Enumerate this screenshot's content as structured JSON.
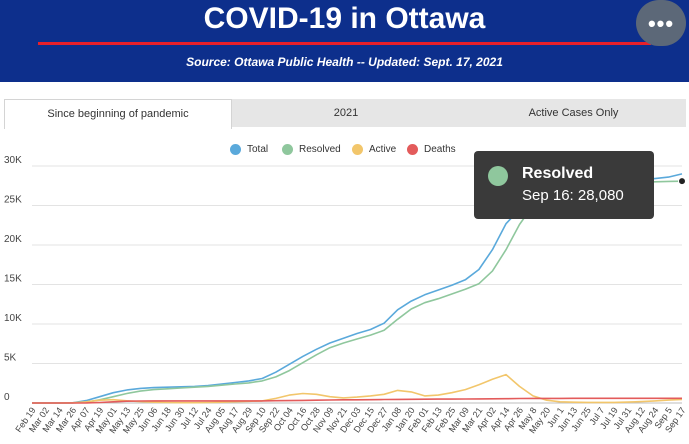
{
  "header": {
    "title": "COVID-19 in Ottawa",
    "source": "Source:  Ottawa Public Health -- Updated:  Sept. 17, 2021",
    "menu_icon": "more-horizontal-icon",
    "menu_glyph": "•••"
  },
  "tabs": [
    {
      "label": "Since beginning of pandemic",
      "active": true
    },
    {
      "label": "2021",
      "active": false
    },
    {
      "label": "Active Cases Only",
      "active": false
    }
  ],
  "colors": {
    "header_bg": "#0d2f8c",
    "accent_red": "#e8202a",
    "total": "#5aa9db",
    "resolved": "#8fc79d",
    "active": "#f2c66b",
    "deaths": "#e35b5b"
  },
  "tooltip": {
    "series": "Resolved",
    "value": "Sep 16: 28,080"
  },
  "chart_data": {
    "type": "line",
    "title": "",
    "xlabel": "",
    "ylabel": "",
    "ylim": [
      0,
      30000
    ],
    "grid": true,
    "legend_placement": "top-center",
    "y_ticks": [
      "0",
      "5K",
      "10K",
      "15K",
      "20K",
      "25K",
      "30K"
    ],
    "x_tick_labels": [
      "Feb 19",
      "Mar 02",
      "Mar 14",
      "Mar 26",
      "Apr 07",
      "Apr 19",
      "May 01",
      "May 13",
      "May 25",
      "Jun 06",
      "Jun 18",
      "Jun 30",
      "Jul 12",
      "Jul 24",
      "Aug 05",
      "Aug 17",
      "Aug 29",
      "Sep 10",
      "Sep 22",
      "Oct 04",
      "Oct 16",
      "Oct 28",
      "Nov 09",
      "Nov 21",
      "Dec 03",
      "Dec 15",
      "Dec 27",
      "Jan 08",
      "Jan 20",
      "Feb 01",
      "Feb 13",
      "Feb 25",
      "Mar 09",
      "Mar 21",
      "Apr 02",
      "Apr 14",
      "Apr 26",
      "May 8",
      "May 20",
      "Jun 1",
      "Jun 13",
      "Jun 25",
      "Jul 7",
      "Jul 19",
      "Jul 31",
      "Aug 12",
      "Aug 24",
      "Sep 5",
      "Sep 17"
    ],
    "series": [
      {
        "name": "Total",
        "values": [
          0,
          0,
          0,
          20,
          300,
          800,
          1300,
          1650,
          1850,
          1950,
          2000,
          2050,
          2100,
          2200,
          2400,
          2600,
          2800,
          3100,
          3900,
          4900,
          5900,
          6800,
          7600,
          8200,
          8800,
          9300,
          10100,
          11800,
          12900,
          13700,
          14300,
          14900,
          15600,
          16900,
          19400,
          22700,
          24500,
          26200,
          27200,
          27700,
          27900,
          28000,
          28050,
          28100,
          28150,
          28250,
          28400,
          28600,
          29000
        ]
      },
      {
        "name": "Resolved",
        "values": [
          0,
          0,
          0,
          0,
          100,
          400,
          800,
          1200,
          1500,
          1700,
          1800,
          1900,
          2000,
          2100,
          2250,
          2400,
          2550,
          2800,
          3300,
          4100,
          5100,
          6100,
          7000,
          7600,
          8100,
          8600,
          9200,
          10600,
          11900,
          12700,
          13200,
          13800,
          14400,
          15100,
          16700,
          19400,
          22600,
          25000,
          26500,
          27200,
          27500,
          27700,
          27800,
          27850,
          27900,
          27950,
          28000,
          28050,
          28080
        ]
      },
      {
        "name": "Active",
        "values": [
          0,
          0,
          0,
          20,
          150,
          350,
          420,
          280,
          180,
          100,
          60,
          40,
          40,
          60,
          100,
          160,
          210,
          260,
          580,
          1000,
          1200,
          1100,
          800,
          650,
          750,
          900,
          1100,
          1600,
          1400,
          900,
          1000,
          1300,
          1700,
          2300,
          3000,
          3600,
          2100,
          900,
          350,
          150,
          100,
          80,
          70,
          80,
          110,
          180,
          260,
          370,
          460
        ]
      },
      {
        "name": "Deaths",
        "values": [
          0,
          0,
          0,
          0,
          10,
          60,
          150,
          230,
          250,
          260,
          265,
          265,
          266,
          266,
          267,
          267,
          268,
          270,
          285,
          310,
          330,
          360,
          380,
          400,
          410,
          420,
          440,
          460,
          470,
          485,
          495,
          500,
          510,
          520,
          530,
          550,
          570,
          580,
          585,
          585,
          590,
          590,
          590,
          590,
          592,
          592,
          593,
          593,
          594
        ]
      }
    ]
  }
}
